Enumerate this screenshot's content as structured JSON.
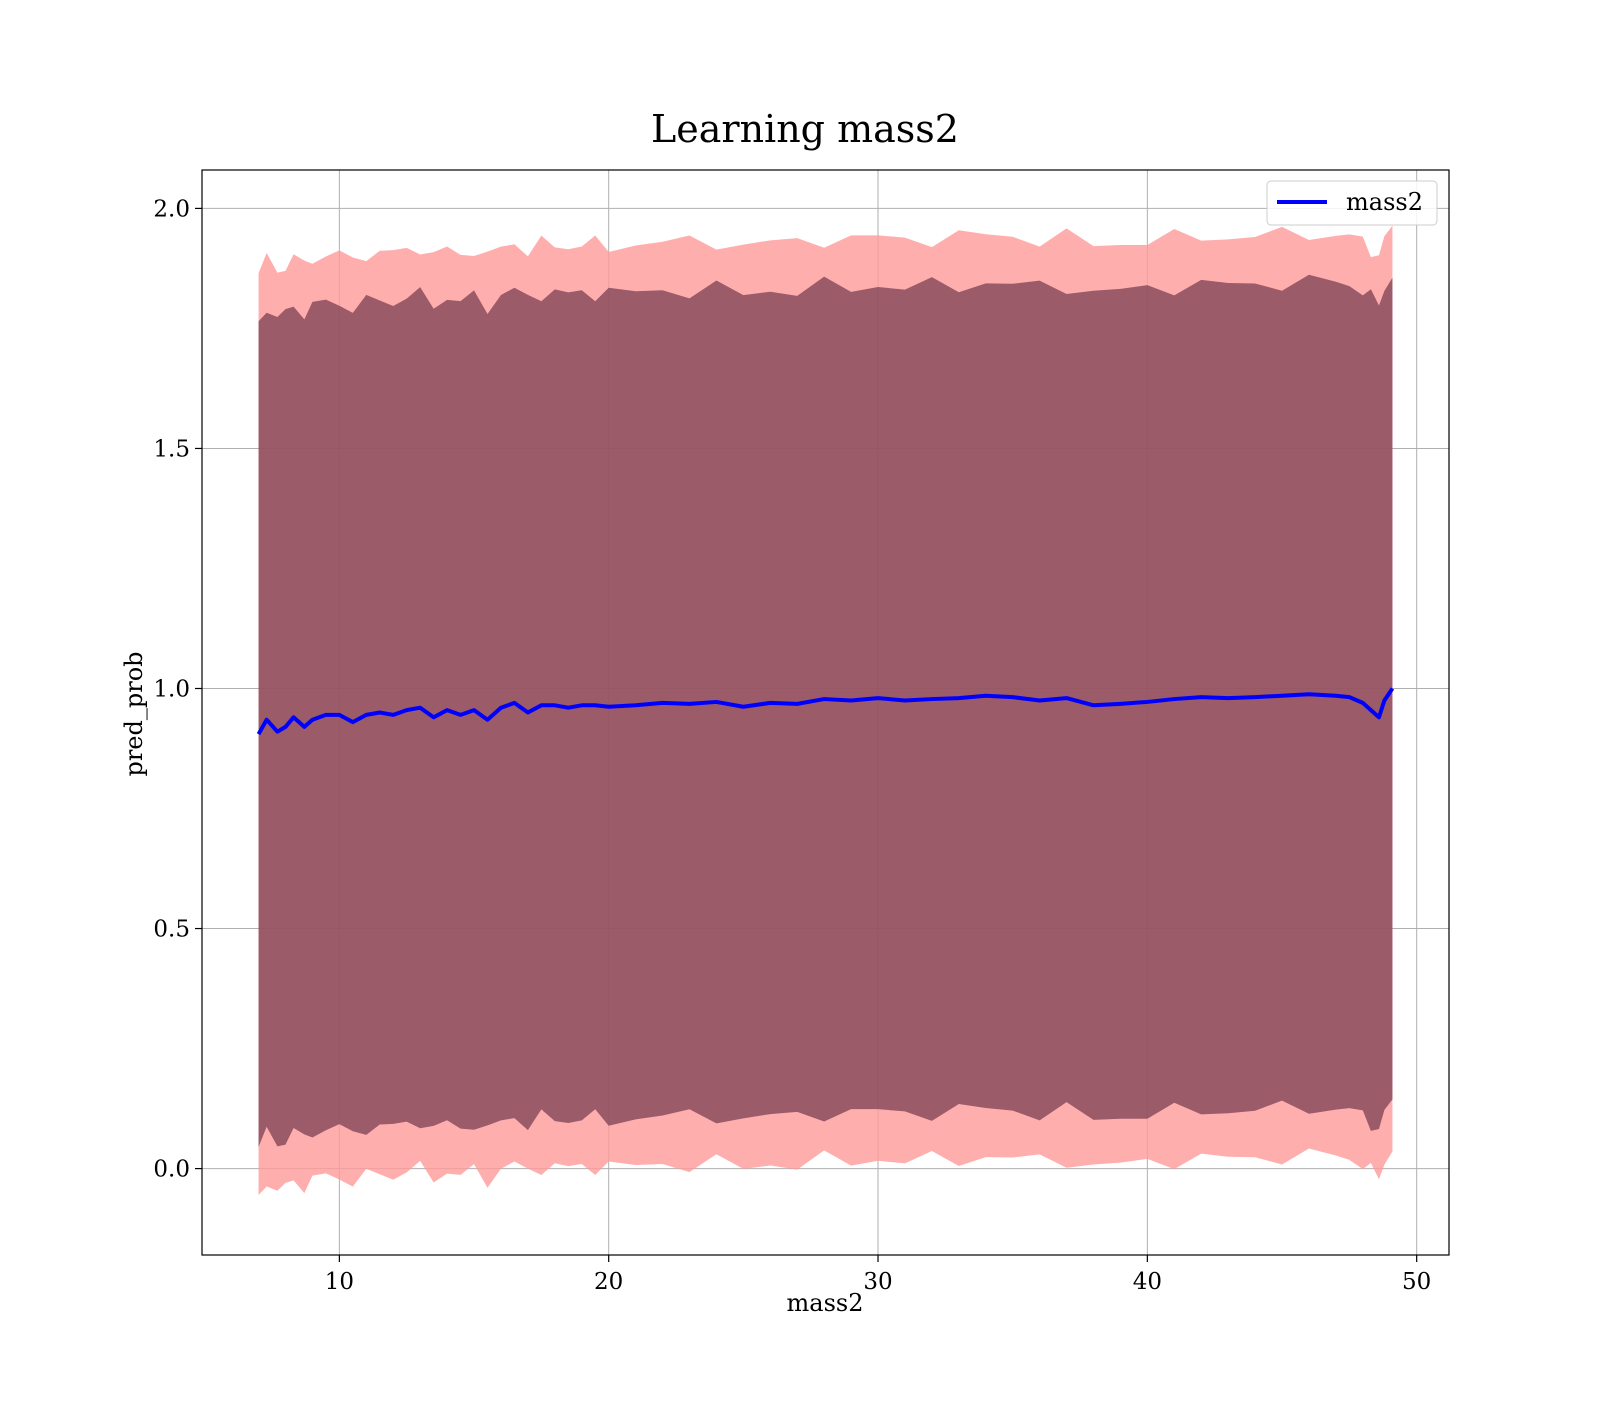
{
  "chart_data": {
    "type": "line",
    "title": "Learning mass2",
    "xlabel": "mass2",
    "ylabel": "pred_prob",
    "xlim": [
      4.9,
      51.2
    ],
    "ylim": [
      -0.18,
      2.08
    ],
    "xticks": [
      10,
      20,
      30,
      40,
      50
    ],
    "yticks": [
      0.0,
      0.5,
      1.0,
      1.5,
      2.0
    ],
    "xtick_labels": [
      "10",
      "20",
      "30",
      "40",
      "50"
    ],
    "ytick_labels": [
      "0.0",
      "0.5",
      "1.0",
      "1.5",
      "2.0"
    ],
    "grid": true,
    "legend": {
      "placement": "top-right",
      "entries": [
        "mass2"
      ]
    },
    "colors": {
      "line": "#0000ff",
      "outer_band": "#ff9a9a",
      "inner_band": "#7a3f52",
      "grid": "#b0b0b0"
    },
    "series": [
      {
        "name": "mass2",
        "x": [
          7.0,
          7.3,
          7.7,
          8.0,
          8.3,
          8.7,
          9.0,
          9.5,
          10.0,
          10.5,
          11.0,
          11.5,
          12.0,
          12.5,
          13.0,
          13.5,
          14.0,
          14.5,
          15.0,
          15.5,
          16.0,
          16.5,
          17.0,
          17.5,
          18.0,
          18.5,
          19.0,
          19.5,
          20.0,
          21.0,
          22.0,
          23.0,
          24.0,
          25.0,
          26.0,
          27.0,
          28.0,
          29.0,
          30.0,
          31.0,
          32.0,
          33.0,
          34.0,
          35.0,
          36.0,
          37.0,
          38.0,
          39.0,
          40.0,
          41.0,
          42.0,
          43.0,
          44.0,
          45.0,
          46.0,
          47.0,
          47.5,
          48.0,
          48.3,
          48.6,
          48.8,
          49.1
        ],
        "y": [
          0.905,
          0.935,
          0.91,
          0.92,
          0.94,
          0.92,
          0.935,
          0.945,
          0.945,
          0.93,
          0.945,
          0.95,
          0.945,
          0.955,
          0.96,
          0.94,
          0.955,
          0.945,
          0.955,
          0.935,
          0.96,
          0.97,
          0.95,
          0.965,
          0.965,
          0.96,
          0.965,
          0.965,
          0.962,
          0.965,
          0.97,
          0.968,
          0.972,
          0.962,
          0.97,
          0.968,
          0.978,
          0.975,
          0.98,
          0.975,
          0.978,
          0.98,
          0.985,
          0.982,
          0.975,
          0.98,
          0.965,
          0.968,
          0.972,
          0.978,
          0.982,
          0.98,
          0.982,
          0.985,
          0.988,
          0.985,
          0.982,
          0.97,
          0.955,
          0.94,
          0.975,
          1.0
        ],
        "band_inner": [
          0.86,
          0.86,
          0.86,
          0.86,
          0.86,
          0.86,
          0.86,
          0.86,
          0.86,
          0.86,
          0.86,
          0.86,
          0.86,
          0.86,
          0.86,
          0.86,
          0.86,
          0.86,
          0.86,
          0.86,
          0.86,
          0.86,
          0.86,
          0.86,
          0.86,
          0.86,
          0.86,
          0.86,
          0.86,
          0.86,
          0.86,
          0.86,
          0.86,
          0.86,
          0.86,
          0.86,
          0.86,
          0.86,
          0.86,
          0.86,
          0.86,
          0.86,
          0.86,
          0.86,
          0.86,
          0.86,
          0.86,
          0.86,
          0.86,
          0.86,
          0.86,
          0.86,
          0.86,
          0.86,
          0.86,
          0.86,
          0.86,
          0.86,
          0.86,
          0.86,
          0.86,
          0.86
        ],
        "band_outer": [
          0.96,
          0.96,
          0.96,
          0.96,
          0.96,
          0.96,
          0.96,
          0.96,
          0.96,
          0.96,
          0.96,
          0.96,
          0.96,
          0.96,
          0.96,
          0.96,
          0.96,
          0.96,
          0.96,
          0.96,
          0.96,
          0.96,
          0.96,
          0.96,
          0.96,
          0.96,
          0.96,
          0.96,
          0.96,
          0.96,
          0.96,
          0.96,
          0.96,
          0.96,
          0.96,
          0.96,
          0.96,
          0.96,
          0.96,
          0.96,
          0.96,
          0.96,
          0.96,
          0.96,
          0.96,
          0.96,
          0.96,
          0.96,
          0.96,
          0.96,
          0.96,
          0.96,
          0.96,
          0.96,
          0.96,
          0.96,
          0.96,
          0.96,
          0.96,
          0.96,
          0.96,
          0.96
        ]
      }
    ]
  }
}
